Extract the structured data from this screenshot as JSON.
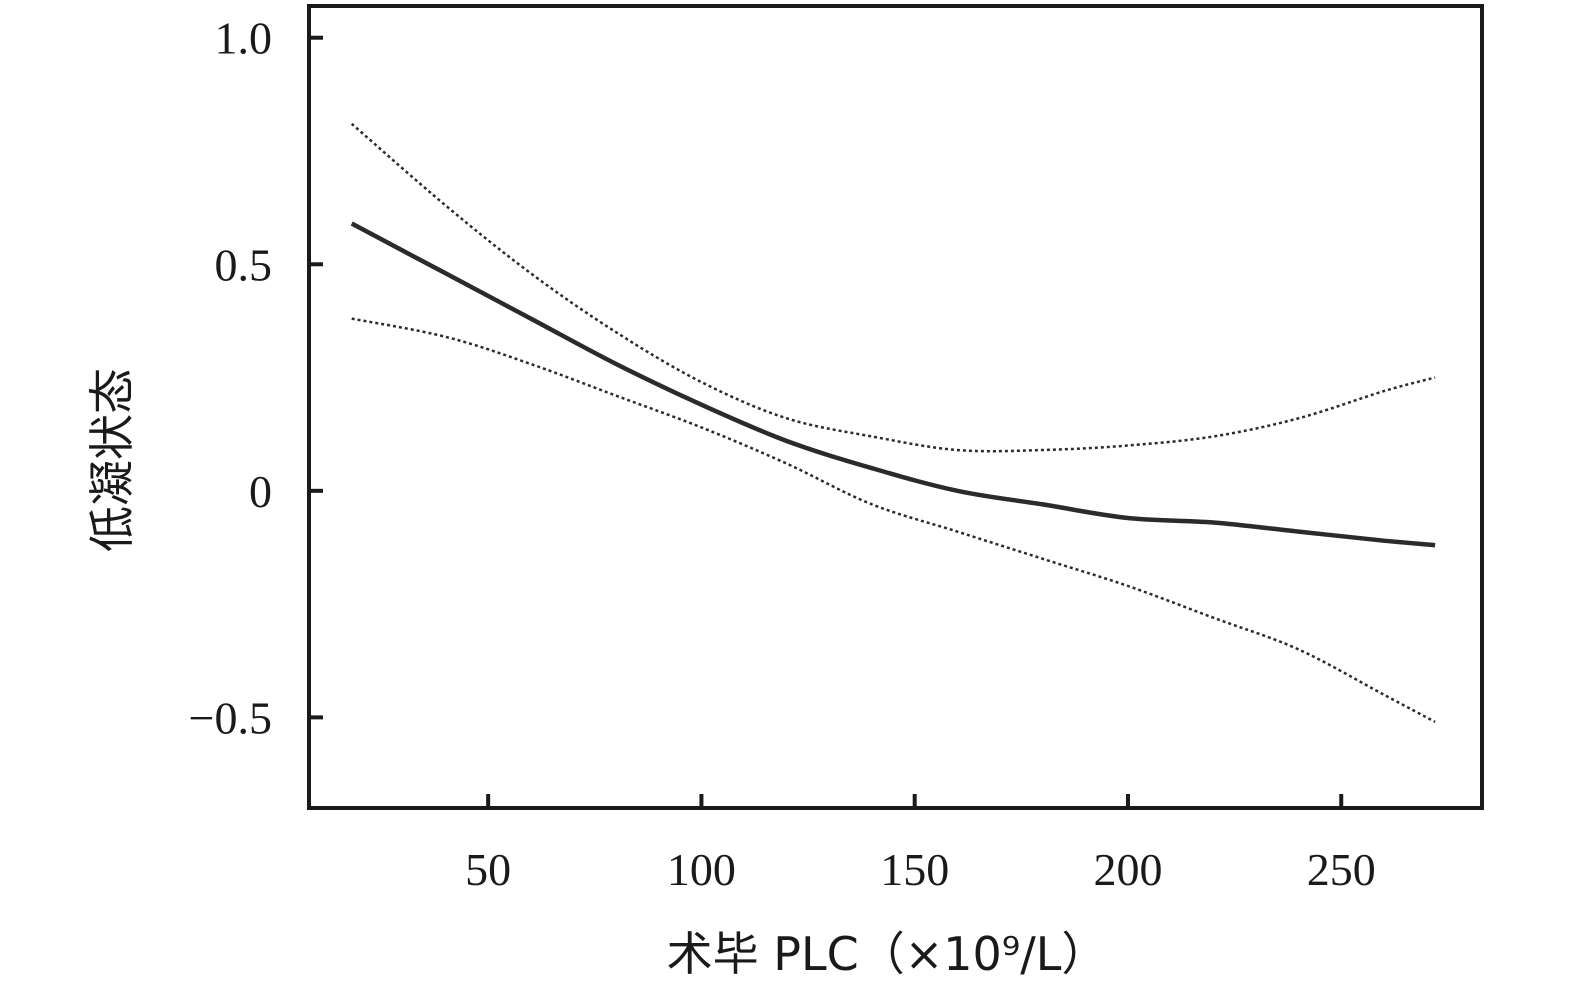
{
  "chart_data": {
    "type": "line",
    "title": "",
    "xlabel": "术毕 PLC（×10⁹/L）",
    "ylabel": "低凝状态",
    "xlim": [
      8,
      283
    ],
    "ylim": [
      -0.7,
      1.07
    ],
    "xticks": [
      50,
      100,
      150,
      200,
      250
    ],
    "yticks": [
      1.0,
      0.5,
      0,
      -0.5
    ],
    "xtick_labels": [
      "50",
      "100",
      "150",
      "200",
      "250"
    ],
    "ytick_labels": [
      "1.0",
      "0.5",
      "0",
      "−0.5"
    ],
    "grid": false,
    "legend": "none",
    "series": [
      {
        "style": "solid",
        "color": "#2b2b2b",
        "x": [
          18,
          40,
          60,
          80,
          100,
          120,
          140,
          160,
          180,
          200,
          220,
          240,
          260,
          272
        ],
        "y": [
          0.59,
          0.48,
          0.38,
          0.28,
          0.19,
          0.11,
          0.05,
          0.0,
          -0.03,
          -0.06,
          -0.07,
          -0.09,
          -0.11,
          -0.12
        ]
      },
      {
        "style": "dotted",
        "color": "#2b2b2b",
        "x": [
          18,
          40,
          60,
          80,
          100,
          120,
          140,
          160,
          180,
          200,
          220,
          240,
          260,
          272
        ],
        "y": [
          0.81,
          0.63,
          0.48,
          0.35,
          0.24,
          0.16,
          0.12,
          0.09,
          0.09,
          0.1,
          0.12,
          0.16,
          0.22,
          0.25
        ]
      },
      {
        "style": "dotted",
        "color": "#2b2b2b",
        "x": [
          18,
          40,
          60,
          80,
          100,
          120,
          140,
          160,
          180,
          200,
          220,
          240,
          260,
          272
        ],
        "y": [
          0.38,
          0.34,
          0.28,
          0.21,
          0.14,
          0.06,
          -0.03,
          -0.09,
          -0.15,
          -0.21,
          -0.28,
          -0.35,
          -0.45,
          -0.51
        ]
      }
    ]
  }
}
